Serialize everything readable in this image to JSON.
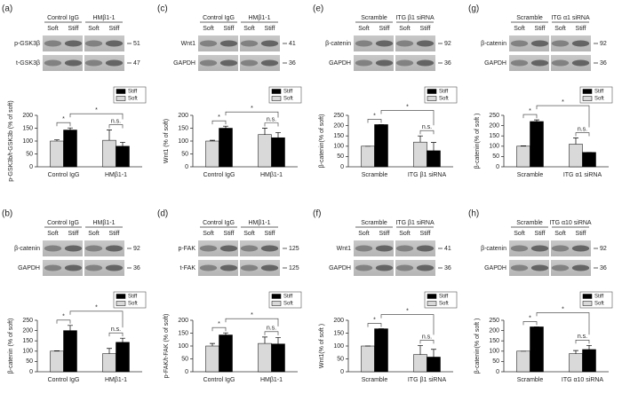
{
  "chart_data": [
    {
      "type": "bar",
      "panel_label": "(a)",
      "blot": {
        "groups": [
          "Control IgG",
          "HMβ1-1"
        ],
        "lanes": [
          "Soft",
          "Stiff",
          "Soft",
          "Stiff"
        ],
        "rows": [
          {
            "name": "p-GSK3β",
            "marker": 51
          },
          {
            "name": "t-GSK3β",
            "marker": 47
          }
        ]
      },
      "ylabel": "p-GSK3b/t-GSK3b (% of soft)",
      "categories": [
        "Control IgG",
        "HMβ1-1"
      ],
      "series": [
        {
          "name": "Soft",
          "color": "#d9d9d9",
          "values": [
            100,
            103
          ],
          "errors": [
            5,
            40
          ]
        },
        {
          "name": "Stiff",
          "color": "#000000",
          "values": [
            143,
            80
          ],
          "errors": [
            8,
            15
          ]
        }
      ],
      "ylim": [
        0,
        200
      ],
      "yticks": [
        0,
        50,
        100,
        150,
        200
      ],
      "significance": {
        "within": [
          "*",
          "n.s."
        ],
        "between": "*"
      }
    },
    {
      "type": "bar",
      "panel_label": "(b)",
      "blot": {
        "groups": [
          "Control IgG",
          "HMβ1-1"
        ],
        "lanes": [
          "Soft",
          "Stiff",
          "Soft",
          "Stiff"
        ],
        "rows": [
          {
            "name": "β-catenin",
            "marker": 92
          },
          {
            "name": "GAPDH",
            "marker": 36
          }
        ]
      },
      "ylabel": "β-catenin (% of soft)",
      "categories": [
        "Control IgG",
        "HMβ1-1"
      ],
      "series": [
        {
          "name": "Soft",
          "color": "#d9d9d9",
          "values": [
            100,
            88
          ],
          "errors": [
            2,
            25
          ]
        },
        {
          "name": "Stiff",
          "color": "#000000",
          "values": [
            200,
            143
          ],
          "errors": [
            25,
            20
          ]
        }
      ],
      "ylim": [
        0,
        250
      ],
      "yticks": [
        0,
        50,
        100,
        150,
        200,
        250
      ],
      "significance": {
        "within": [
          "*",
          "n.s."
        ],
        "between": "*"
      }
    },
    {
      "type": "bar",
      "panel_label": "(c)",
      "blot": {
        "groups": [
          "Control IgG",
          "HMβ1-1"
        ],
        "lanes": [
          "Soft",
          "Stiff",
          "Soft",
          "Stiff"
        ],
        "rows": [
          {
            "name": "Wnt1",
            "marker": 41
          },
          {
            "name": "GAPDH",
            "marker": 36
          }
        ]
      },
      "ylabel": "Wnt1 (% of soft)",
      "categories": [
        "Control IgG",
        "HMβ1-1"
      ],
      "series": [
        {
          "name": "Soft",
          "color": "#d9d9d9",
          "values": [
            100,
            125
          ],
          "errors": [
            3,
            25
          ]
        },
        {
          "name": "Stiff",
          "color": "#000000",
          "values": [
            150,
            113
          ],
          "errors": [
            8,
            20
          ]
        }
      ],
      "ylim": [
        0,
        200
      ],
      "yticks": [
        0,
        50,
        100,
        150,
        200
      ],
      "significance": {
        "within": [
          "*",
          "n.s."
        ],
        "between": "*"
      }
    },
    {
      "type": "bar",
      "panel_label": "(d)",
      "blot": {
        "groups": [
          "Control IgG",
          "HMβ1-1"
        ],
        "lanes": [
          "Soft",
          "Stiff",
          "Soft",
          "Stiff"
        ],
        "rows": [
          {
            "name": "p-FAK",
            "marker": 125
          },
          {
            "name": "t-FAK",
            "marker": 125
          }
        ]
      },
      "ylabel": "p-FAK/t-FAK (% of soft)",
      "categories": [
        "Control IgG",
        "HMβ1-1"
      ],
      "series": [
        {
          "name": "Soft",
          "color": "#d9d9d9",
          "values": [
            100,
            110
          ],
          "errors": [
            10,
            25
          ]
        },
        {
          "name": "Stiff",
          "color": "#000000",
          "values": [
            143,
            108
          ],
          "errors": [
            8,
            25
          ]
        }
      ],
      "ylim": [
        0,
        200
      ],
      "yticks": [
        0,
        50,
        100,
        150,
        200
      ],
      "significance": {
        "within": [
          "*",
          "n.s."
        ],
        "between": "*"
      }
    },
    {
      "type": "bar",
      "panel_label": "(e)",
      "blot": {
        "groups": [
          "Scramble",
          "ITG β1 siRNA"
        ],
        "lanes": [
          "Soft",
          "Stiff",
          "Soft",
          "Stiff"
        ],
        "rows": [
          {
            "name": "β-catenin",
            "marker": 92
          },
          {
            "name": "GAPDH",
            "marker": 36
          }
        ]
      },
      "ylabel": "β-catenin(% of soft)",
      "categories": [
        "Scramble",
        "ITG β1 siRNA"
      ],
      "series": [
        {
          "name": "Soft",
          "color": "#d9d9d9",
          "values": [
            100,
            120
          ],
          "errors": [
            0,
            30
          ]
        },
        {
          "name": "Stiff",
          "color": "#000000",
          "values": [
            205,
            78
          ],
          "errors": [
            0,
            40
          ]
        }
      ],
      "ylim": [
        0,
        250
      ],
      "yticks": [
        0,
        50,
        100,
        150,
        200,
        250
      ],
      "significance": {
        "within": [
          "*",
          "n.s."
        ],
        "between": "*"
      }
    },
    {
      "type": "bar",
      "panel_label": "(f)",
      "blot": {
        "groups": [
          "Scramble",
          "ITG β1 siRNA"
        ],
        "lanes": [
          "Soft",
          "Stiff",
          "Soft",
          "Stiff"
        ],
        "rows": [
          {
            "name": "Wnt1",
            "marker": 41
          },
          {
            "name": "GAPDH",
            "marker": 36
          }
        ]
      },
      "ylabel": "Wnt1(% of soft )",
      "categories": [
        "Scramble",
        "ITG β1 siRNA"
      ],
      "series": [
        {
          "name": "Soft",
          "color": "#d9d9d9",
          "values": [
            100,
            67
          ],
          "errors": [
            0,
            35
          ]
        },
        {
          "name": "Stiff",
          "color": "#000000",
          "values": [
            167,
            57
          ],
          "errors": [
            0,
            30
          ]
        }
      ],
      "ylim": [
        0,
        200
      ],
      "yticks": [
        0,
        50,
        100,
        150,
        200
      ],
      "significance": {
        "within": [
          "*",
          "n.s."
        ],
        "between": "*"
      }
    },
    {
      "type": "bar",
      "panel_label": "(g)",
      "blot": {
        "groups": [
          "Scramble",
          "ITG α1 siRNA"
        ],
        "lanes": [
          "Soft",
          "Stiff",
          "Soft",
          "Stiff"
        ],
        "rows": [
          {
            "name": "β-catenin",
            "marker": 92
          },
          {
            "name": "GAPDH",
            "marker": 36
          }
        ]
      },
      "ylabel": "β-catenin(% of soft )",
      "categories": [
        "Scramble",
        "ITG α1 siRNA"
      ],
      "series": [
        {
          "name": "Soft",
          "color": "#d9d9d9",
          "values": [
            100,
            110
          ],
          "errors": [
            2,
            30
          ]
        },
        {
          "name": "Stiff",
          "color": "#000000",
          "values": [
            220,
            70
          ],
          "errors": [
            8,
            0
          ]
        }
      ],
      "ylim": [
        0,
        250
      ],
      "yticks": [
        0,
        50,
        100,
        150,
        200,
        250
      ],
      "significance": {
        "within": [
          "*",
          "n.s."
        ],
        "between": "*"
      }
    },
    {
      "type": "bar",
      "panel_label": "(h)",
      "blot": {
        "groups": [
          "Scramble",
          "ITG α10 siRNA"
        ],
        "lanes": [
          "Soft",
          "Stiff",
          "Soft",
          "Stiff"
        ],
        "rows": [
          {
            "name": "β-catenin",
            "marker": 92
          },
          {
            "name": "GAPDH",
            "marker": 36
          }
        ]
      },
      "ylabel": "β-catenin(% of soft )",
      "categories": [
        "Scramble",
        "ITG α10 siRNA"
      ],
      "series": [
        {
          "name": "Soft",
          "color": "#d9d9d9",
          "values": [
            100,
            88
          ],
          "errors": [
            0,
            15
          ]
        },
        {
          "name": "Stiff",
          "color": "#000000",
          "values": [
            218,
            108
          ],
          "errors": [
            0,
            20
          ]
        }
      ],
      "ylim": [
        0,
        250
      ],
      "yticks": [
        0,
        50,
        100,
        150,
        200,
        250
      ],
      "significance": {
        "within": [
          "*",
          "n.s."
        ],
        "between": "*"
      }
    }
  ]
}
